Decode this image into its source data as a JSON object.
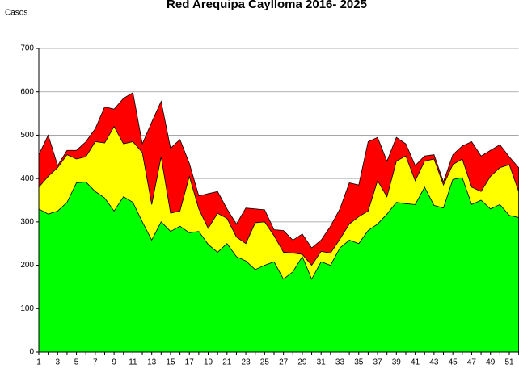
{
  "chart_data": {
    "type": "area",
    "title": "Red Arequipa Caylloma 2016- 2025",
    "y_label": "Casos",
    "categories": [
      1,
      null,
      3,
      null,
      5,
      null,
      7,
      null,
      9,
      null,
      11,
      null,
      13,
      null,
      15,
      null,
      17,
      null,
      19,
      null,
      21,
      null,
      23,
      null,
      25,
      null,
      27,
      null,
      29,
      null,
      31,
      null,
      33,
      null,
      35,
      null,
      37,
      null,
      39,
      null,
      41,
      null,
      43,
      null,
      45,
      null,
      47,
      null,
      49,
      null,
      51,
      null
    ],
    "series": [
      {
        "color": "#ff0000",
        "values": [
          455,
          500,
          430,
          465,
          465,
          485,
          515,
          565,
          560,
          585,
          598,
          480,
          530,
          578,
          470,
          490,
          435,
          360,
          365,
          370,
          330,
          295,
          332,
          330,
          328,
          282,
          280,
          258,
          272,
          240,
          258,
          290,
          330,
          390,
          385,
          485,
          495,
          440,
          495,
          480,
          430,
          452,
          455,
          392,
          455,
          475,
          485,
          452,
          465,
          478,
          450,
          425
        ]
      },
      {
        "color": "#ffff00",
        "values": [
          380,
          405,
          425,
          455,
          445,
          450,
          485,
          482,
          520,
          480,
          485,
          460,
          340,
          450,
          320,
          325,
          405,
          330,
          285,
          320,
          308,
          265,
          250,
          298,
          300,
          268,
          230,
          228,
          225,
          200,
          232,
          228,
          260,
          295,
          312,
          325,
          395,
          358,
          440,
          452,
          395,
          440,
          445,
          385,
          432,
          445,
          380,
          370,
          405,
          425,
          432,
          370
        ]
      },
      {
        "color": "#00ff00",
        "values": [
          330,
          318,
          325,
          345,
          390,
          392,
          370,
          355,
          325,
          358,
          345,
          300,
          258,
          300,
          278,
          290,
          275,
          278,
          248,
          230,
          250,
          220,
          210,
          190,
          200,
          208,
          168,
          185,
          220,
          168,
          208,
          200,
          240,
          258,
          250,
          280,
          295,
          318,
          345,
          342,
          340,
          380,
          338,
          332,
          398,
          402,
          340,
          350,
          330,
          340,
          315,
          310
        ]
      }
    ],
    "ylim": [
      0,
      700
    ],
    "yticks": [
      0,
      100,
      200,
      300,
      400,
      500,
      600,
      700
    ],
    "grid": true
  }
}
